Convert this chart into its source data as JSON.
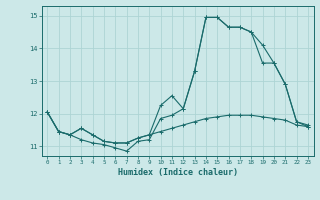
{
  "xlabel": "Humidex (Indice chaleur)",
  "background_color": "#cce8e8",
  "grid_color": "#add4d4",
  "line_color": "#1a6b6b",
  "xlim": [
    -0.5,
    23.5
  ],
  "ylim": [
    10.7,
    15.3
  ],
  "yticks": [
    11,
    12,
    13,
    14,
    15
  ],
  "xticks": [
    0,
    1,
    2,
    3,
    4,
    5,
    6,
    7,
    8,
    9,
    10,
    11,
    12,
    13,
    14,
    15,
    16,
    17,
    18,
    19,
    20,
    21,
    22,
    23
  ],
  "line1_x": [
    0,
    1,
    2,
    3,
    4,
    5,
    6,
    7,
    8,
    9,
    10,
    11,
    12,
    13,
    14,
    15,
    16,
    17,
    18,
    19,
    20,
    21,
    22,
    23
  ],
  "line1_y": [
    12.05,
    11.45,
    11.35,
    11.2,
    11.1,
    11.05,
    10.95,
    10.85,
    11.15,
    11.2,
    11.85,
    11.95,
    12.15,
    13.3,
    14.95,
    14.95,
    14.65,
    14.65,
    14.5,
    14.1,
    13.55,
    12.9,
    11.75,
    11.65
  ],
  "line2_x": [
    0,
    1,
    2,
    3,
    4,
    5,
    6,
    7,
    8,
    9,
    10,
    11,
    12,
    13,
    14,
    15,
    16,
    17,
    18,
    19,
    20,
    21,
    22,
    23
  ],
  "line2_y": [
    12.05,
    11.45,
    11.35,
    11.55,
    11.35,
    11.15,
    11.1,
    11.1,
    11.25,
    11.35,
    11.45,
    11.55,
    11.65,
    11.75,
    11.85,
    11.9,
    11.95,
    11.95,
    11.95,
    11.9,
    11.85,
    11.8,
    11.65,
    11.6
  ],
  "line3_x": [
    0,
    1,
    2,
    3,
    4,
    5,
    6,
    7,
    8,
    9,
    10,
    11,
    12,
    13,
    14,
    15,
    16,
    17,
    18,
    19,
    20,
    21,
    22,
    23
  ],
  "line3_y": [
    12.05,
    11.45,
    11.35,
    11.55,
    11.35,
    11.15,
    11.1,
    11.1,
    11.25,
    11.35,
    12.25,
    12.55,
    12.15,
    13.3,
    14.95,
    14.95,
    14.65,
    14.65,
    14.5,
    13.55,
    13.55,
    12.9,
    11.75,
    11.6
  ]
}
